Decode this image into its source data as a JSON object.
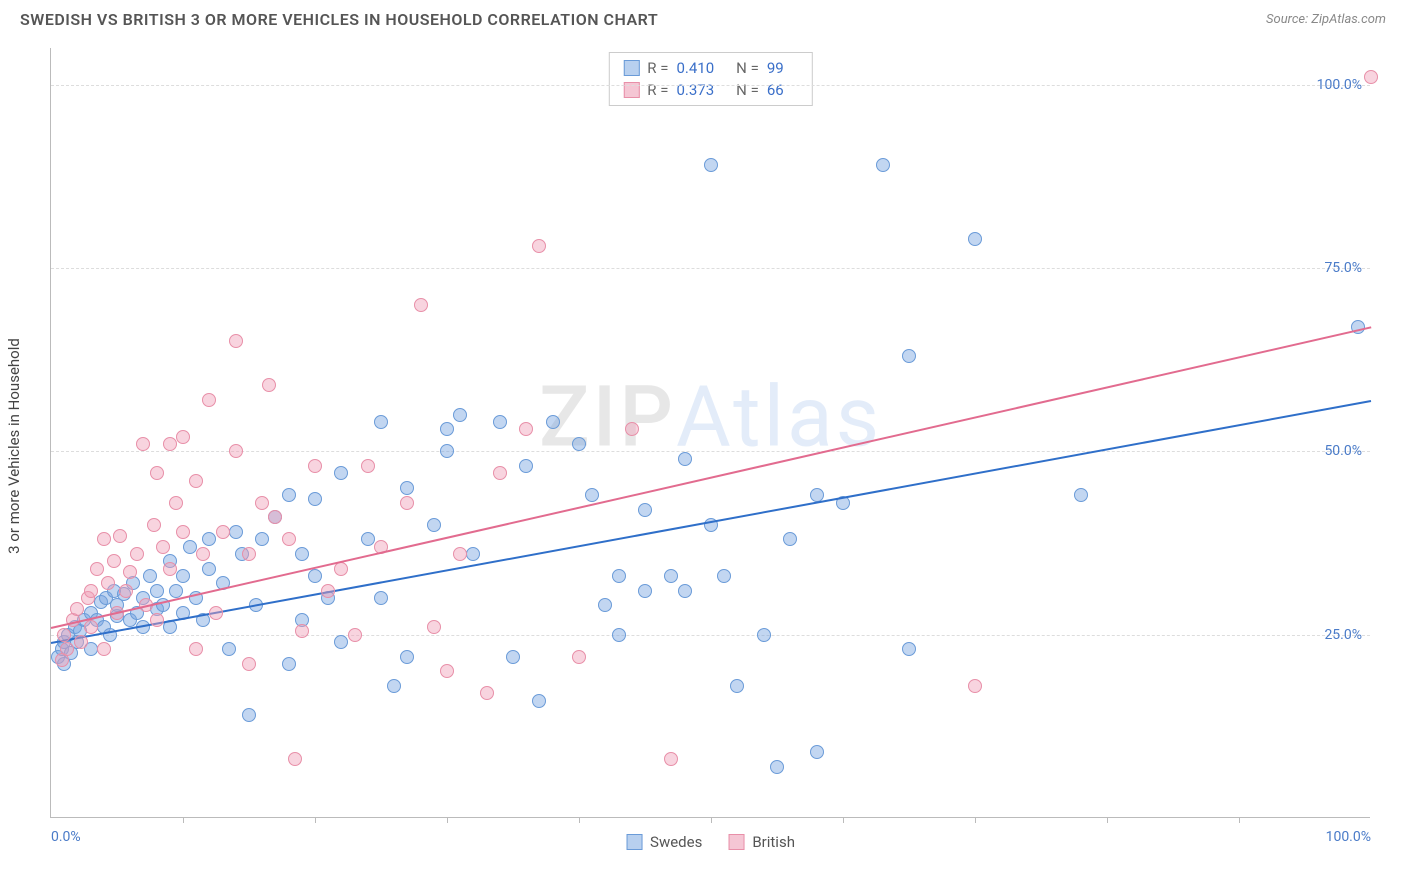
{
  "header": {
    "title": "SWEDISH VS BRITISH 3 OR MORE VEHICLES IN HOUSEHOLD CORRELATION CHART",
    "source": "Source: ZipAtlas.com"
  },
  "chart": {
    "type": "scatter",
    "ylabel": "3 or more Vehicles in Household",
    "xlim": [
      0,
      100
    ],
    "ylim": [
      0,
      105
    ],
    "ytick_labels": [
      "25.0%",
      "50.0%",
      "75.0%",
      "100.0%"
    ],
    "ytick_values": [
      25,
      50,
      75,
      100
    ],
    "xtick_labels": [
      "0.0%",
      "100.0%"
    ],
    "xtick_label_values": [
      0,
      100
    ],
    "xtick_minor": [
      10,
      20,
      30,
      40,
      50,
      60,
      70,
      80,
      90
    ],
    "background_color": "#ffffff",
    "grid_color": "#dddddd",
    "axis_color": "#bbbbbb",
    "text_color": "#4a7bc8",
    "marker_radius": 7,
    "marker_opacity": 0.55,
    "watermark": {
      "zip": "ZIP",
      "atlas": "Atlas"
    },
    "series": [
      {
        "name": "Swedes",
        "color_fill": "rgba(120,165,225,0.45)",
        "color_stroke": "#6a9bd8",
        "swatch_fill": "#b8d0ef",
        "swatch_border": "#6a9bd8",
        "stats": {
          "R_label": "R =",
          "R": "0.410",
          "N_label": "N =",
          "N": "99"
        },
        "trend": {
          "x1": 0,
          "y1": 24,
          "x2": 100,
          "y2": 57,
          "color": "#2f6fc9"
        },
        "points": [
          [
            0.5,
            22
          ],
          [
            0.8,
            23
          ],
          [
            1,
            21
          ],
          [
            1,
            24
          ],
          [
            1.3,
            25
          ],
          [
            1.5,
            22.5
          ],
          [
            1.8,
            26
          ],
          [
            2,
            24
          ],
          [
            2.2,
            25.5
          ],
          [
            2.5,
            27
          ],
          [
            3,
            23
          ],
          [
            3,
            28
          ],
          [
            3.5,
            27
          ],
          [
            3.8,
            29.5
          ],
          [
            4,
            26
          ],
          [
            4.2,
            30
          ],
          [
            4.5,
            25
          ],
          [
            4.8,
            31
          ],
          [
            5,
            27.5
          ],
          [
            5,
            29
          ],
          [
            5.5,
            30.5
          ],
          [
            6,
            27
          ],
          [
            6.2,
            32
          ],
          [
            6.5,
            28
          ],
          [
            7,
            30
          ],
          [
            7,
            26
          ],
          [
            7.5,
            33
          ],
          [
            8,
            28.5
          ],
          [
            8,
            31
          ],
          [
            8.5,
            29
          ],
          [
            9,
            26
          ],
          [
            9,
            35
          ],
          [
            9.5,
            31
          ],
          [
            10,
            28
          ],
          [
            10,
            33
          ],
          [
            10.5,
            37
          ],
          [
            11,
            30
          ],
          [
            11.5,
            27
          ],
          [
            12,
            38
          ],
          [
            12,
            34
          ],
          [
            13,
            32
          ],
          [
            13.5,
            23
          ],
          [
            14,
            39
          ],
          [
            14.5,
            36
          ],
          [
            15,
            14
          ],
          [
            15.5,
            29
          ],
          [
            16,
            38
          ],
          [
            17,
            41
          ],
          [
            18,
            44
          ],
          [
            18,
            21
          ],
          [
            19,
            36
          ],
          [
            19,
            27
          ],
          [
            20,
            33
          ],
          [
            20,
            43.5
          ],
          [
            21,
            30
          ],
          [
            22,
            24
          ],
          [
            22,
            47
          ],
          [
            24,
            38
          ],
          [
            25,
            54
          ],
          [
            25,
            30
          ],
          [
            26,
            18
          ],
          [
            27,
            22
          ],
          [
            27,
            45
          ],
          [
            30,
            53
          ],
          [
            30,
            50
          ],
          [
            31,
            55
          ],
          [
            32,
            36
          ],
          [
            34,
            54
          ],
          [
            35,
            22
          ],
          [
            36,
            48
          ],
          [
            37,
            16
          ],
          [
            40,
            51
          ],
          [
            41,
            44
          ],
          [
            42,
            29
          ],
          [
            43,
            25
          ],
          [
            45,
            42
          ],
          [
            45,
            31
          ],
          [
            48,
            31
          ],
          [
            48,
            49
          ],
          [
            50,
            40
          ],
          [
            50,
            89
          ],
          [
            51,
            33
          ],
          [
            52,
            18
          ],
          [
            54,
            25
          ],
          [
            55,
            7
          ],
          [
            56,
            38
          ],
          [
            58,
            44
          ],
          [
            60,
            43
          ],
          [
            63,
            89
          ],
          [
            65,
            63
          ],
          [
            65,
            23
          ],
          [
            70,
            79
          ],
          [
            78,
            44
          ],
          [
            99,
            67
          ],
          [
            43,
            33
          ],
          [
            38,
            54
          ],
          [
            29,
            40
          ],
          [
            58,
            9
          ],
          [
            47,
            33
          ]
        ]
      },
      {
        "name": "British",
        "color_fill": "rgba(240,160,185,0.45)",
        "color_stroke": "#e88fa8",
        "swatch_fill": "#f5c6d4",
        "swatch_border": "#e88fa8",
        "stats": {
          "R_label": "R =",
          "R": "0.373",
          "N_label": "N =",
          "N": "66"
        },
        "trend": {
          "x1": 0,
          "y1": 26,
          "x2": 100,
          "y2": 67,
          "color": "#e26b8f"
        },
        "points": [
          [
            0.8,
            21.5
          ],
          [
            1,
            25
          ],
          [
            1.2,
            23
          ],
          [
            1.7,
            27
          ],
          [
            2,
            28.5
          ],
          [
            2.3,
            24
          ],
          [
            2.8,
            30
          ],
          [
            3,
            31
          ],
          [
            3,
            26
          ],
          [
            3.5,
            34
          ],
          [
            4,
            23
          ],
          [
            4,
            38
          ],
          [
            4.3,
            32
          ],
          [
            4.8,
            35
          ],
          [
            5,
            28
          ],
          [
            5.2,
            38.5
          ],
          [
            5.7,
            31
          ],
          [
            6,
            33.5
          ],
          [
            6.5,
            36
          ],
          [
            7,
            51
          ],
          [
            7.2,
            29
          ],
          [
            7.8,
            40
          ],
          [
            8,
            27
          ],
          [
            8,
            47
          ],
          [
            8.5,
            37
          ],
          [
            9,
            34
          ],
          [
            9,
            51
          ],
          [
            9.5,
            43
          ],
          [
            10,
            52
          ],
          [
            10,
            39
          ],
          [
            11,
            23
          ],
          [
            11,
            46
          ],
          [
            11.5,
            36
          ],
          [
            12,
            57
          ],
          [
            12.5,
            28
          ],
          [
            13,
            39
          ],
          [
            14,
            50
          ],
          [
            14,
            65
          ],
          [
            15,
            36
          ],
          [
            15,
            21
          ],
          [
            16,
            43
          ],
          [
            16.5,
            59
          ],
          [
            17,
            41
          ],
          [
            18,
            38
          ],
          [
            18.5,
            8
          ],
          [
            19,
            25.5
          ],
          [
            20,
            48
          ],
          [
            21,
            31
          ],
          [
            22,
            34
          ],
          [
            23,
            25
          ],
          [
            24,
            48
          ],
          [
            25,
            37
          ],
          [
            27,
            43
          ],
          [
            28,
            70
          ],
          [
            29,
            26
          ],
          [
            30,
            20
          ],
          [
            31,
            36
          ],
          [
            33,
            17
          ],
          [
            34,
            47
          ],
          [
            36,
            53
          ],
          [
            37,
            78
          ],
          [
            40,
            22
          ],
          [
            44,
            53
          ],
          [
            47,
            8
          ],
          [
            70,
            18
          ],
          [
            100,
            101
          ]
        ]
      }
    ],
    "bottom_legend": [
      {
        "label": "Swedes",
        "fill": "#b8d0ef",
        "border": "#6a9bd8"
      },
      {
        "label": "British",
        "fill": "#f5c6d4",
        "border": "#e88fa8"
      }
    ]
  }
}
